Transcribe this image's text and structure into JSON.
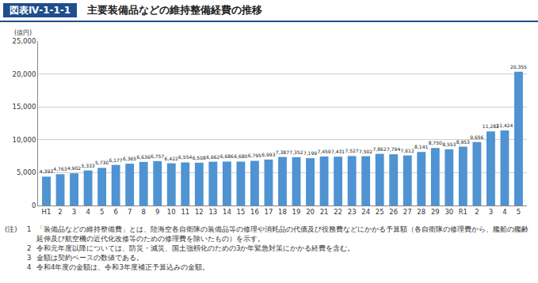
{
  "chart_data": {
    "type": "bar",
    "figure_number": "図表Ⅳ-1-1-1",
    "title": "主要装備品などの維持整備経費の推移",
    "ylabel": "(億円)",
    "categories": [
      "H1",
      "2",
      "3",
      "4",
      "5",
      "6",
      "7",
      "8",
      "9",
      "10",
      "11",
      "12",
      "13",
      "14",
      "15",
      "16",
      "17",
      "18",
      "19",
      "20",
      "21",
      "22",
      "23",
      "24",
      "25",
      "26",
      "27",
      "28",
      "29",
      "30",
      "R1",
      "2",
      "3",
      "4",
      "5"
    ],
    "values": [
      4393,
      4763,
      4902,
      5333,
      5730,
      6177,
      6365,
      6636,
      6757,
      6422,
      6554,
      6508,
      6662,
      6686,
      6680,
      6795,
      6993,
      7387,
      7352,
      7199,
      7459,
      7431,
      7527,
      7502,
      7862,
      7794,
      7612,
      8141,
      8750,
      8553,
      8953,
      9656,
      11282,
      11424,
      20355
    ],
    "value_labels": [
      "4,393",
      "4,763",
      "4,902",
      "5,333",
      "5,730",
      "6,177",
      "6,365",
      "6,636",
      "6,757",
      "6,422",
      "6,554",
      "6,508",
      "6,662",
      "6,686",
      "6,680",
      "6,795",
      "6,993",
      "7,387",
      "7,352",
      "7,199",
      "7,459",
      "7,431",
      "7,527",
      "7,502",
      "7,862",
      "7,794",
      "7,612",
      "8,141",
      "8,750",
      "8,553",
      "8,953",
      "9,656",
      "11,282",
      "11,424",
      "20,355"
    ],
    "data_labels": true,
    "color": "#4f93d2",
    "ylim": [
      0,
      25000
    ],
    "yticks": [
      {
        "value": 0,
        "label": "0"
      },
      {
        "value": 5000,
        "label": "5,000"
      },
      {
        "value": 10000,
        "label": "10,000"
      },
      {
        "value": 15000,
        "label": "15,000"
      },
      {
        "value": 20000,
        "label": "20,000"
      },
      {
        "value": 25000,
        "label": "25,000"
      }
    ],
    "grid": true,
    "notes": {
      "label": "(注)",
      "items": [
        {
          "number": "1",
          "text": "「装備品などの維持整備費」とは、陸海空各自衛隊の装備品等の修理や消耗品の代価及び役務費などにかかる予算額（各自衛隊の修理費から、艦船の艦齢延伸及び航空機の近代化改修等のための修理費を除いたもの）を示す。"
        },
        {
          "number": "2",
          "text": "令和元年度以降については、防災・減災、国土強靱化のための3か年緊急対策にかかる経費を含む。"
        },
        {
          "number": "3",
          "text": "金額は契約ベースの数値である。"
        },
        {
          "number": "4",
          "text": "令和4年度の金額は、令和3年度補正予算込みの金額。"
        }
      ]
    }
  }
}
